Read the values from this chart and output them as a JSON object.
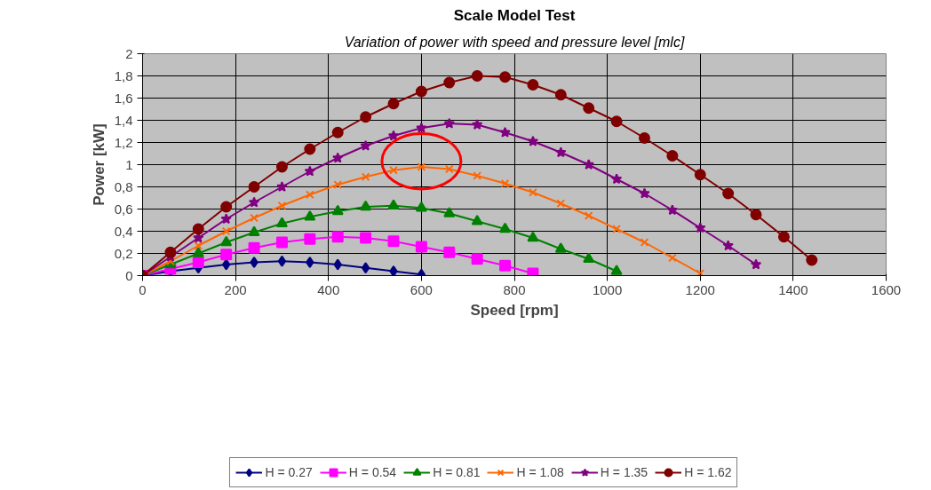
{
  "chart_data": {
    "type": "line",
    "title": "Scale Model Test",
    "subtitle": "Variation of power with speed and pressure level [mlc]",
    "xlabel": "Speed [rpm]",
    "ylabel": "Power [kW]",
    "xlim": [
      0,
      1600
    ],
    "xticks": [
      0,
      200,
      400,
      600,
      800,
      1000,
      1200,
      1400,
      1600
    ],
    "ylim": [
      0,
      2
    ],
    "yticks": [
      0,
      {
        "value": 0.2,
        "label": "0,2"
      },
      {
        "value": 0.4,
        "label": "0,4"
      },
      {
        "value": 0.6,
        "label": "0,6"
      },
      {
        "value": 0.8,
        "label": "0,8"
      },
      1,
      {
        "value": 1.2,
        "label": "1,2"
      },
      {
        "value": 1.4,
        "label": "1,4"
      },
      {
        "value": 1.6,
        "label": "1,6"
      },
      {
        "value": 1.8,
        "label": "1,8"
      },
      2
    ],
    "grid": true,
    "legend": "bottom",
    "line_style": "solid",
    "series": [
      {
        "name": "H = 0.27",
        "color": "#000080",
        "marker": "diamond",
        "x": [
          0,
          60,
          120,
          180,
          240,
          300,
          360,
          420,
          480,
          540,
          600
        ],
        "values": [
          0,
          0.04,
          0.07,
          0.1,
          0.12,
          0.13,
          0.12,
          0.1,
          0.07,
          0.04,
          0.01
        ]
      },
      {
        "name": "H = 0.54",
        "color": "#ff00ff",
        "marker": "square",
        "x": [
          0,
          60,
          120,
          180,
          240,
          300,
          360,
          420,
          480,
          540,
          600,
          660,
          720,
          780,
          840
        ],
        "values": [
          0,
          0.06,
          0.12,
          0.19,
          0.25,
          0.3,
          0.33,
          0.35,
          0.34,
          0.31,
          0.26,
          0.21,
          0.15,
          0.09,
          0.02
        ]
      },
      {
        "name": "H = 0.81",
        "color": "#008000",
        "marker": "triangle",
        "x": [
          0,
          60,
          120,
          180,
          240,
          300,
          360,
          420,
          480,
          540,
          600,
          660,
          720,
          780,
          840,
          900,
          960,
          1020
        ],
        "values": [
          0,
          0.1,
          0.2,
          0.3,
          0.39,
          0.47,
          0.53,
          0.58,
          0.62,
          0.63,
          0.61,
          0.56,
          0.49,
          0.42,
          0.34,
          0.24,
          0.15,
          0.04
        ]
      },
      {
        "name": "H = 1.08",
        "color": "#ff6600",
        "marker": "cross",
        "x": [
          0,
          60,
          120,
          180,
          240,
          300,
          360,
          420,
          480,
          540,
          600,
          660,
          720,
          780,
          840,
          900,
          960,
          1020,
          1080,
          1140,
          1200
        ],
        "values": [
          0,
          0.13,
          0.27,
          0.4,
          0.52,
          0.63,
          0.73,
          0.82,
          0.89,
          0.95,
          0.98,
          0.96,
          0.9,
          0.83,
          0.75,
          0.65,
          0.54,
          0.42,
          0.3,
          0.16,
          0.02
        ]
      },
      {
        "name": "H = 1.35",
        "color": "#800080",
        "marker": "star",
        "x": [
          0,
          60,
          120,
          180,
          240,
          300,
          360,
          420,
          480,
          540,
          600,
          660,
          720,
          780,
          840,
          900,
          960,
          1020,
          1080,
          1140,
          1200,
          1260,
          1320
        ],
        "values": [
          0,
          0.17,
          0.34,
          0.51,
          0.66,
          0.8,
          0.94,
          1.06,
          1.17,
          1.26,
          1.33,
          1.37,
          1.36,
          1.29,
          1.21,
          1.11,
          1.0,
          0.87,
          0.74,
          0.59,
          0.43,
          0.27,
          0.1
        ]
      },
      {
        "name": "H = 1.62",
        "color": "#800000",
        "marker": "circle",
        "x": [
          0,
          60,
          120,
          180,
          240,
          300,
          360,
          420,
          480,
          540,
          600,
          660,
          720,
          780,
          840,
          900,
          960,
          1020,
          1080,
          1140,
          1200,
          1260,
          1320,
          1380,
          1440
        ],
        "values": [
          0,
          0.21,
          0.42,
          0.62,
          0.8,
          0.98,
          1.14,
          1.29,
          1.43,
          1.55,
          1.66,
          1.74,
          1.8,
          1.79,
          1.72,
          1.63,
          1.51,
          1.39,
          1.24,
          1.08,
          0.91,
          0.74,
          0.55,
          0.35,
          0.14
        ]
      }
    ]
  }
}
